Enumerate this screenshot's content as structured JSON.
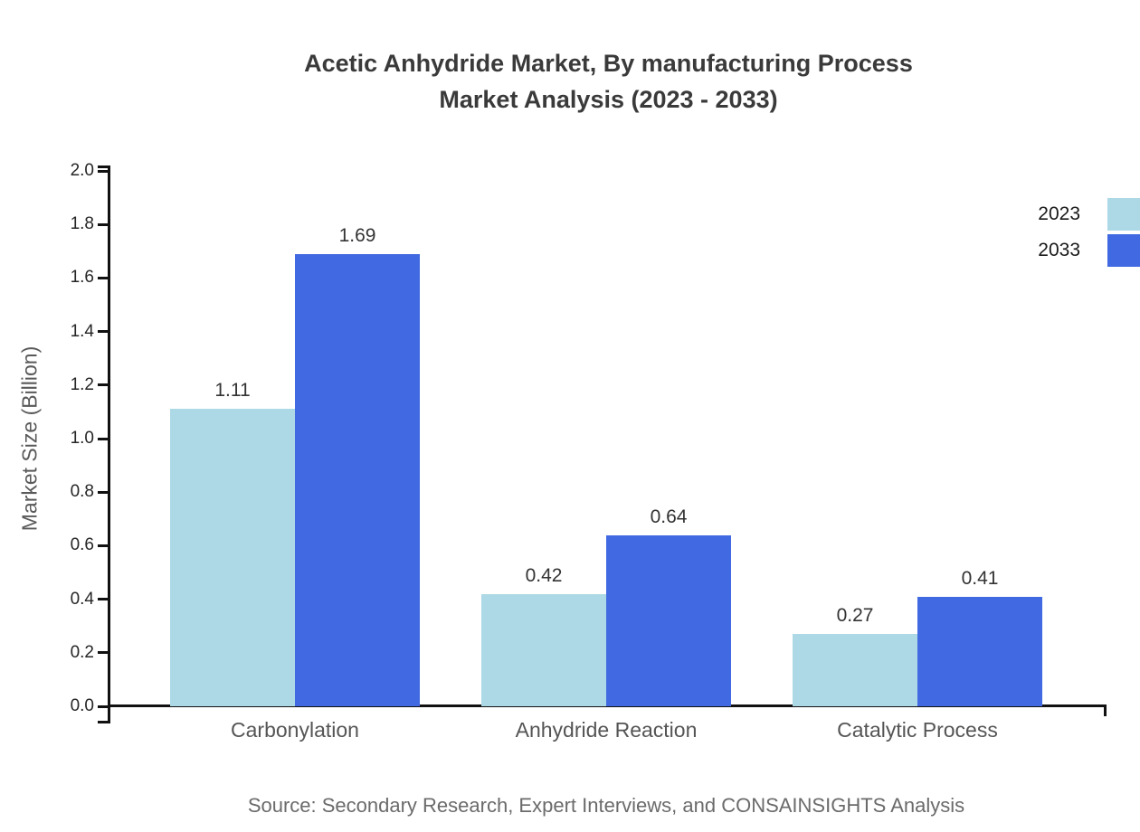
{
  "title": {
    "line1": "Acetic Anhydride Market, By manufacturing Process",
    "line2": "Market Analysis (2023 - 2033)"
  },
  "source_note": "Source: Secondary Research, Expert Interviews, and CONSAINSIGHTS Analysis",
  "colors": {
    "series_2023": "#ADD8E6",
    "series_2033": "#4169E1",
    "axis": "#111111",
    "title_text": "#3a3a3a",
    "tick_text": "#262626",
    "category_text": "#555555",
    "value_text": "#333333",
    "source_text": "#6b6b6b"
  },
  "chart_data": {
    "type": "bar",
    "title": "Acetic Anhydride Market, By manufacturing Process Market Analysis (2023 - 2033)",
    "categories": [
      "Carbonylation",
      "Anhydride Reaction",
      "Catalytic Process"
    ],
    "series": [
      {
        "name": "2023",
        "color": "#ADD8E6",
        "values": [
          1.11,
          0.42,
          0.27
        ]
      },
      {
        "name": "2033",
        "color": "#4169E1",
        "values": [
          1.69,
          0.64,
          0.41
        ]
      }
    ],
    "xlabel": "",
    "ylabel": "Market Size (Billion)",
    "ylim": [
      0.0,
      2.0
    ],
    "yticks": [
      0.0,
      0.2,
      0.4,
      0.6,
      0.8,
      1.0,
      1.2,
      1.4,
      1.6,
      1.8,
      2.0
    ],
    "ytick_labels": [
      "0.0",
      "0.2",
      "0.4",
      "0.6",
      "0.8",
      "1.0",
      "1.2",
      "1.4",
      "1.6",
      "1.8",
      "2.0"
    ],
    "value_labels": [
      [
        "1.11",
        "0.42",
        "0.27"
      ],
      [
        "1.69",
        "0.64",
        "0.41"
      ]
    ],
    "grid": false,
    "legend_position": "upper right",
    "bar_value_labels_shown": true
  }
}
